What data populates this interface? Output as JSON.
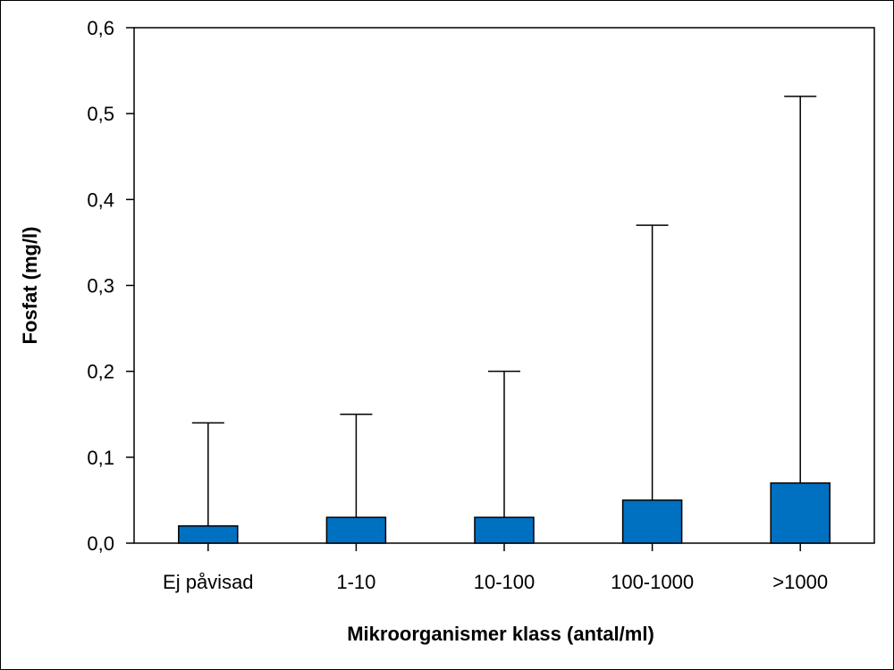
{
  "chart_data": {
    "type": "bar",
    "title": "",
    "xlabel": "Mikroorganismer klass (antal/ml)",
    "ylabel": "Fosfat (mg/l)",
    "categories": [
      "Ej påvisad",
      "1-10",
      "10-100",
      "100-1000",
      ">1000"
    ],
    "series": [
      {
        "values": [
          0.02,
          0.03,
          0.03,
          0.05,
          0.07
        ],
        "error_upper": [
          0.14,
          0.15,
          0.2,
          0.37,
          0.52
        ]
      }
    ],
    "ylim": [
      0,
      0.6
    ],
    "yticks": [
      "0,0",
      "0,1",
      "0,2",
      "0,3",
      "0,4",
      "0,5",
      "0,6"
    ],
    "grid": false,
    "legend": "none",
    "colors": {
      "bar": "#0070c0",
      "outline": "#000000"
    }
  }
}
